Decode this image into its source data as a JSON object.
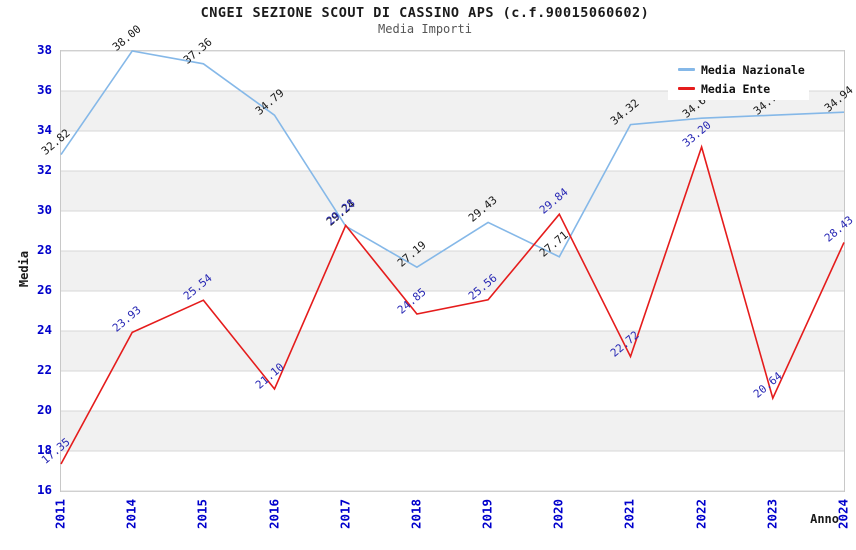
{
  "title": "CNGEI SEZIONE SCOUT DI CASSINO APS (c.f.90015060602)",
  "subtitle": "Media Importi",
  "y_axis": {
    "title": "Media",
    "ticks": [
      16,
      18,
      20,
      22,
      24,
      26,
      28,
      30,
      32,
      34,
      36,
      38
    ]
  },
  "x_axis": {
    "title": "Anno",
    "ticks": [
      "2011",
      "2014",
      "2015",
      "2016",
      "2017",
      "2018",
      "2019",
      "2020",
      "2021",
      "2022",
      "2023",
      "2024"
    ]
  },
  "legend": {
    "items": [
      {
        "label": "Media Nazionale",
        "color": "#85b8e8"
      },
      {
        "label": "Media Ente",
        "color": "#e51c1c"
      }
    ]
  },
  "colors": {
    "tick_label": "#0000cc",
    "grid_line": "#d7d7d7",
    "band_fill": "#f1f1f1",
    "plot_border": "#c8c8c8",
    "series_blue": "#85b8e8",
    "series_red": "#e51c1c",
    "label_black": "#1a1a1a",
    "label_navy": "#2828b4",
    "subtitle_text": "#555555"
  },
  "chart_data": {
    "type": "line",
    "title": "CNGEI SEZIONE SCOUT DI CASSINO APS (c.f.90015060602)",
    "subtitle": "Media Importi",
    "xlabel": "Anno",
    "ylabel": "Media",
    "ylim": [
      16,
      38
    ],
    "y_tick_step": 2,
    "grid": "horizontal",
    "legend_position": "top-right",
    "plot_bands": "alternating #ffffff / #f1f1f1 every 2 y-units from top",
    "x": [
      "2011",
      "2014",
      "2015",
      "2016",
      "2017",
      "2018",
      "2019",
      "2020",
      "2021",
      "2022",
      "2023",
      "2024"
    ],
    "series": [
      {
        "name": "Media Nazionale",
        "color": "#85b8e8",
        "label_color": "#1a1a1a",
        "values": [
          32.82,
          38.0,
          37.36,
          34.79,
          29.24,
          27.19,
          29.43,
          27.71,
          34.32,
          34.64,
          34.79,
          34.94
        ]
      },
      {
        "name": "Media Ente",
        "color": "#e51c1c",
        "label_color": "#2828b4",
        "values": [
          17.35,
          23.93,
          25.54,
          21.1,
          29.28,
          24.85,
          25.56,
          29.84,
          22.72,
          33.2,
          20.64,
          28.43
        ]
      }
    ]
  }
}
